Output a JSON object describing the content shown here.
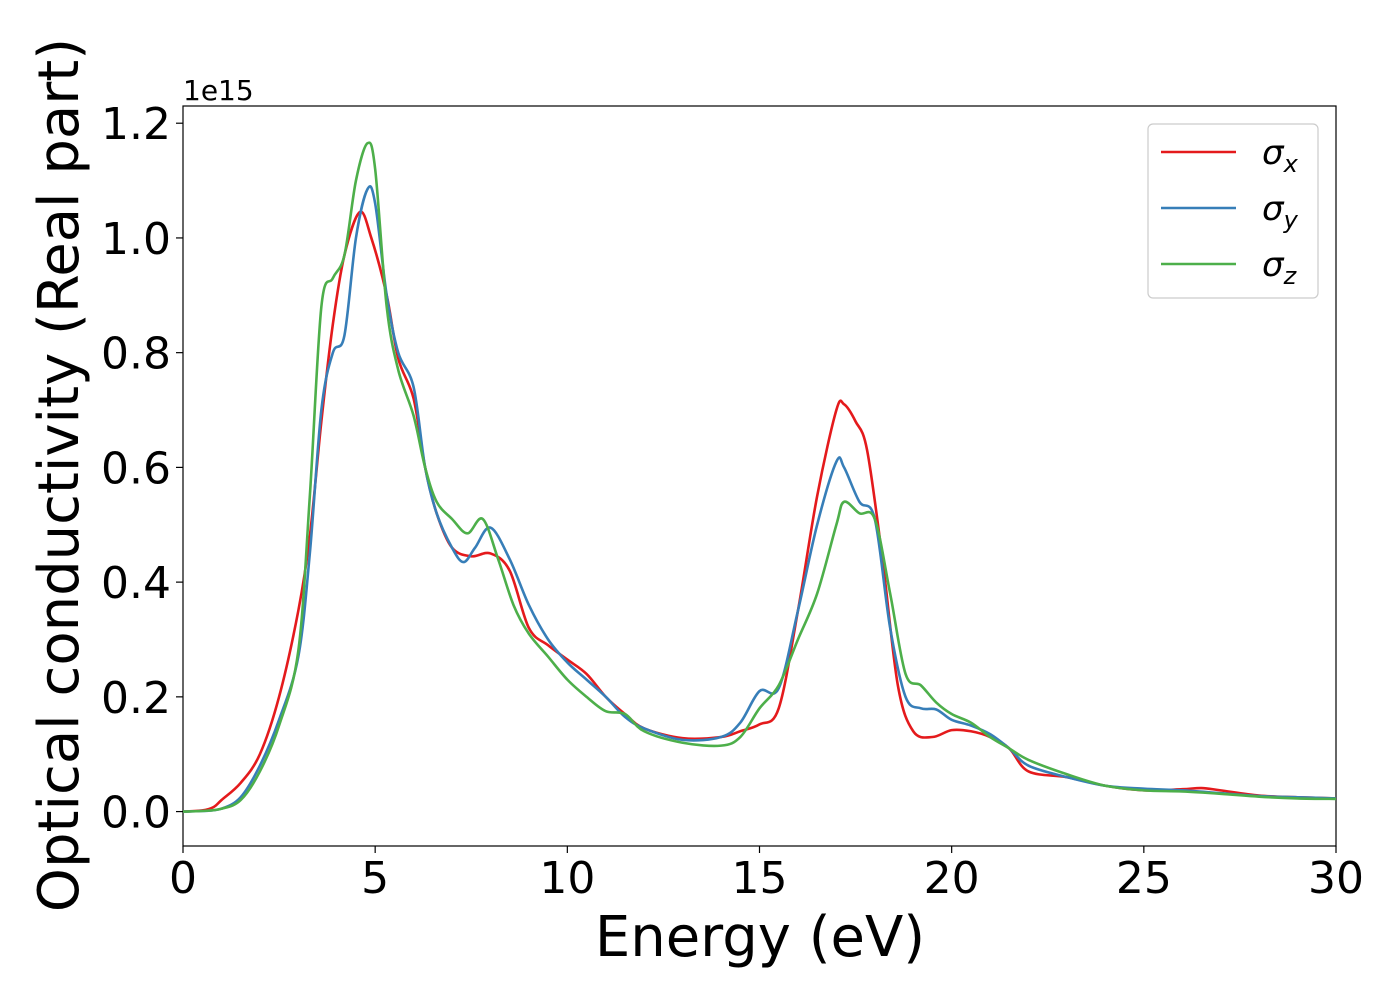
{
  "chart_data": {
    "type": "line",
    "xlabel": "Energy (eV)",
    "ylabel": "Optical conductivity (Real part)",
    "y_offset_label": "1e15",
    "xlim": [
      0,
      30
    ],
    "ylim": [
      -0.06,
      1.23
    ],
    "xticks": [
      0,
      5,
      10,
      15,
      20,
      25,
      30
    ],
    "xtick_labels": [
      "0",
      "5",
      "10",
      "15",
      "20",
      "25",
      "30"
    ],
    "yticks": [
      0.0,
      0.2,
      0.4,
      0.6,
      0.8,
      1.0,
      1.2
    ],
    "ytick_labels": [
      "0.0",
      "0.2",
      "0.4",
      "0.6",
      "0.8",
      "1.0",
      "1.2"
    ],
    "grid": false,
    "legend_position": "top-right",
    "series": [
      {
        "name": "σx",
        "symbol": "σ",
        "subscript": "x",
        "color": "#e41a1c",
        "x": [
          0,
          0.5,
          0.8,
          1.0,
          1.5,
          2.0,
          2.5,
          3.0,
          3.3,
          3.6,
          3.9,
          4.2,
          4.6,
          4.9,
          5.3,
          5.6,
          6.0,
          6.3,
          6.6,
          7.0,
          7.5,
          8.0,
          8.5,
          9.0,
          9.5,
          10.0,
          10.5,
          11.0,
          11.5,
          12.0,
          13.0,
          14.0,
          14.5,
          15.0,
          15.5,
          16.0,
          16.5,
          17.0,
          17.2,
          17.5,
          17.8,
          18.2,
          18.6,
          19.0,
          19.5,
          20.0,
          20.5,
          21.0,
          21.5,
          22.0,
          23.0,
          24.0,
          25.0,
          26.0,
          26.5,
          27.0,
          28.0,
          29.0,
          30.0
        ],
        "values": [
          0.0,
          0.002,
          0.008,
          0.02,
          0.05,
          0.1,
          0.2,
          0.35,
          0.48,
          0.68,
          0.85,
          0.97,
          1.045,
          1.0,
          0.9,
          0.79,
          0.72,
          0.6,
          0.52,
          0.46,
          0.445,
          0.45,
          0.42,
          0.32,
          0.29,
          0.265,
          0.24,
          0.2,
          0.17,
          0.145,
          0.128,
          0.13,
          0.14,
          0.152,
          0.18,
          0.35,
          0.55,
          0.7,
          0.71,
          0.68,
          0.63,
          0.44,
          0.22,
          0.14,
          0.13,
          0.142,
          0.14,
          0.13,
          0.11,
          0.07,
          0.06,
          0.045,
          0.037,
          0.039,
          0.041,
          0.037,
          0.028,
          0.025,
          0.023
        ]
      },
      {
        "name": "σy",
        "symbol": "σ",
        "subscript": "y",
        "color": "#377eb8",
        "x": [
          0,
          0.5,
          1.0,
          1.5,
          2.0,
          2.5,
          3.0,
          3.3,
          3.6,
          3.9,
          4.2,
          4.5,
          4.8,
          5.0,
          5.3,
          5.6,
          6.0,
          6.3,
          6.6,
          7.0,
          7.3,
          7.6,
          8.0,
          8.5,
          9.0,
          9.5,
          10.0,
          10.5,
          11.0,
          11.5,
          12.0,
          13.0,
          14.0,
          14.5,
          15.0,
          15.5,
          16.0,
          16.5,
          17.0,
          17.2,
          17.6,
          18.0,
          18.4,
          18.8,
          19.2,
          19.6,
          20.0,
          20.5,
          21.0,
          21.5,
          22.0,
          23.0,
          24.0,
          25.0,
          26.0,
          27.0,
          28.0,
          29.0,
          30.0
        ],
        "values": [
          0.0,
          0.001,
          0.005,
          0.025,
          0.08,
          0.16,
          0.27,
          0.45,
          0.7,
          0.8,
          0.83,
          1.0,
          1.085,
          1.06,
          0.9,
          0.8,
          0.74,
          0.6,
          0.52,
          0.46,
          0.435,
          0.46,
          0.495,
          0.44,
          0.36,
          0.3,
          0.26,
          0.23,
          0.2,
          0.165,
          0.145,
          0.125,
          0.13,
          0.155,
          0.21,
          0.215,
          0.35,
          0.5,
          0.61,
          0.6,
          0.54,
          0.51,
          0.32,
          0.2,
          0.18,
          0.178,
          0.16,
          0.15,
          0.135,
          0.11,
          0.08,
          0.06,
          0.045,
          0.04,
          0.037,
          0.032,
          0.027,
          0.025,
          0.023
        ]
      },
      {
        "name": "σz",
        "symbol": "σ",
        "subscript": "z",
        "color": "#4daf4a",
        "x": [
          0,
          0.5,
          1.0,
          1.5,
          2.0,
          2.5,
          3.0,
          3.3,
          3.6,
          3.9,
          4.2,
          4.5,
          4.8,
          5.0,
          5.3,
          5.6,
          6.0,
          6.3,
          6.6,
          7.0,
          7.4,
          7.8,
          8.2,
          8.6,
          9.0,
          9.5,
          10.0,
          10.5,
          11.0,
          11.5,
          12.0,
          13.0,
          14.0,
          14.5,
          15.0,
          15.5,
          16.0,
          16.5,
          17.0,
          17.2,
          17.6,
          18.0,
          18.4,
          18.8,
          19.2,
          19.6,
          20.0,
          20.5,
          21.0,
          21.5,
          22.0,
          23.0,
          24.0,
          25.0,
          26.0,
          27.0,
          28.0,
          29.0,
          30.0
        ],
        "values": [
          0.0,
          0.001,
          0.005,
          0.02,
          0.07,
          0.15,
          0.28,
          0.55,
          0.88,
          0.93,
          0.97,
          1.1,
          1.165,
          1.12,
          0.88,
          0.77,
          0.69,
          0.6,
          0.54,
          0.51,
          0.485,
          0.51,
          0.44,
          0.36,
          0.31,
          0.27,
          0.23,
          0.2,
          0.175,
          0.17,
          0.14,
          0.12,
          0.115,
          0.13,
          0.18,
          0.22,
          0.3,
          0.38,
          0.5,
          0.54,
          0.52,
          0.51,
          0.38,
          0.24,
          0.22,
          0.19,
          0.17,
          0.155,
          0.13,
          0.11,
          0.09,
          0.065,
          0.045,
          0.037,
          0.035,
          0.031,
          0.026,
          0.023,
          0.022
        ]
      }
    ]
  }
}
